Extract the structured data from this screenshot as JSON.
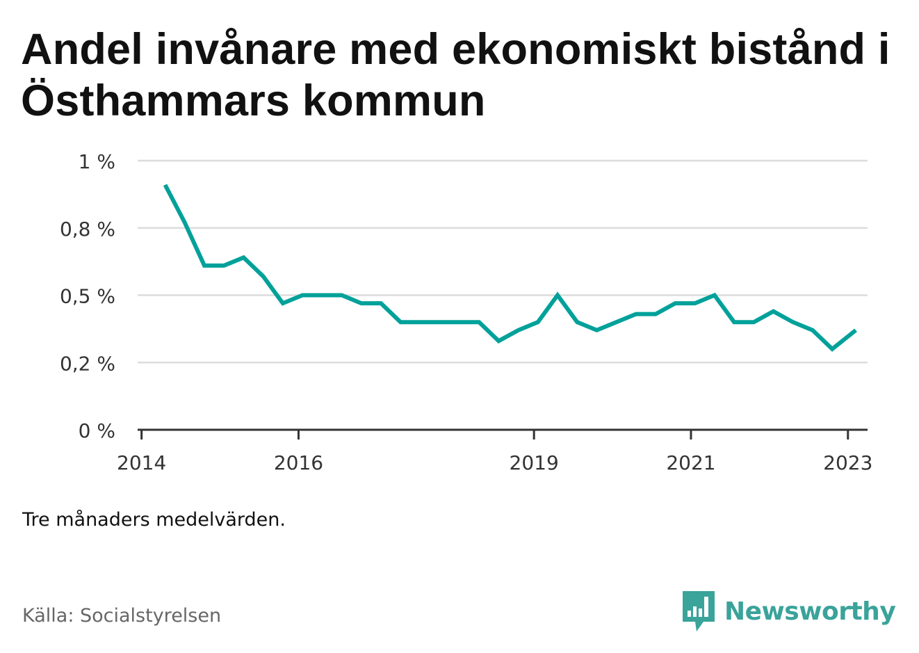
{
  "title": "Andel invånare med ekonomiskt bistånd i Östhammars kommun",
  "note": "Tre månaders medelvärden.",
  "source": "Källa: Socialstyrelsen",
  "brand": {
    "name": "Newsworthy",
    "icon": "bar-chart-bubble-icon",
    "color": "#3aa39a"
  },
  "chart_data": {
    "type": "line",
    "title": "Andel invånare med ekonomiskt bistånd i Östhammars kommun",
    "xlabel": "",
    "ylabel": "",
    "xlim": [
      2013.95,
      2023.25
    ],
    "ylim": [
      0,
      1
    ],
    "yticks": [
      0,
      0.25,
      0.5,
      0.75,
      1
    ],
    "ytick_labels": [
      "0 %",
      "0,2 %",
      "0,5 %",
      "0,8 %",
      "1 %"
    ],
    "xticks": [
      2014,
      2016,
      2019,
      2021,
      2023
    ],
    "xtick_labels": [
      "2014",
      "2016",
      "2019",
      "2021",
      "2023"
    ],
    "grid": true,
    "line_color": "#00a19a",
    "series": [
      {
        "x": [
          2014.3,
          2014.55,
          2014.8,
          2015.05,
          2015.3,
          2015.55,
          2015.8,
          2016.05,
          2016.3,
          2016.55,
          2016.8,
          2017.05,
          2017.3,
          2017.55,
          2017.8,
          2018.05,
          2018.3,
          2018.55,
          2018.8,
          2019.05,
          2019.3,
          2019.55,
          2019.8,
          2020.05,
          2020.3,
          2020.55,
          2020.8,
          2021.05,
          2021.3,
          2021.55,
          2021.8,
          2022.05,
          2022.3,
          2022.55,
          2022.8,
          2023.1
        ],
        "y": [
          0.91,
          0.77,
          0.61,
          0.61,
          0.64,
          0.57,
          0.47,
          0.5,
          0.5,
          0.5,
          0.47,
          0.47,
          0.4,
          0.4,
          0.4,
          0.4,
          0.4,
          0.33,
          0.37,
          0.4,
          0.5,
          0.4,
          0.37,
          0.4,
          0.43,
          0.43,
          0.47,
          0.47,
          0.5,
          0.4,
          0.4,
          0.44,
          0.4,
          0.37,
          0.3,
          0.37
        ]
      }
    ]
  }
}
